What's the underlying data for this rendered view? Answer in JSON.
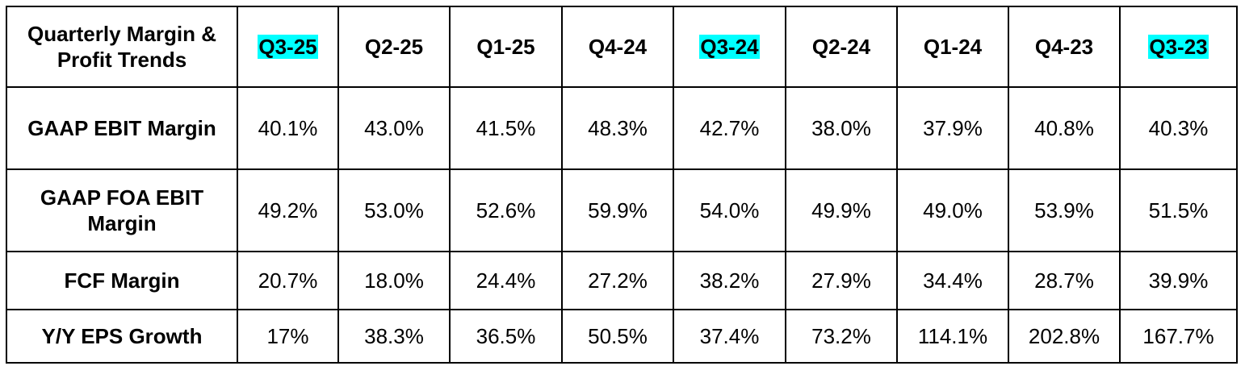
{
  "table": {
    "header": [
      "Quarterly Margin & Profit Trends",
      "Q3-25",
      "Q2-25",
      "Q1-25",
      "Q4-24",
      "Q3-24",
      "Q2-24",
      "Q1-24",
      "Q4-23",
      "Q3-23"
    ],
    "rows": [
      [
        "GAAP EBIT Margin",
        "40.1%",
        "43.0%",
        "41.5%",
        "48.3%",
        "42.7%",
        "38.0%",
        "37.9%",
        "40.8%",
        "40.3%"
      ],
      [
        "GAAP FOA EBIT Margin",
        "49.2%",
        "53.0%",
        "52.6%",
        "59.9%",
        "54.0%",
        "49.9%",
        "49.0%",
        "53.9%",
        "51.5%"
      ],
      [
        "FCF Margin",
        "20.7%",
        "18.0%",
        "24.4%",
        "27.2%",
        "38.2%",
        "27.9%",
        "34.4%",
        "28.7%",
        "39.9%"
      ],
      [
        "Y/Y EPS Growth",
        "17%",
        "38.3%",
        "36.5%",
        "50.5%",
        "37.4%",
        "73.2%",
        "114.1%",
        "202.8%",
        "167.7%"
      ]
    ]
  }
}
